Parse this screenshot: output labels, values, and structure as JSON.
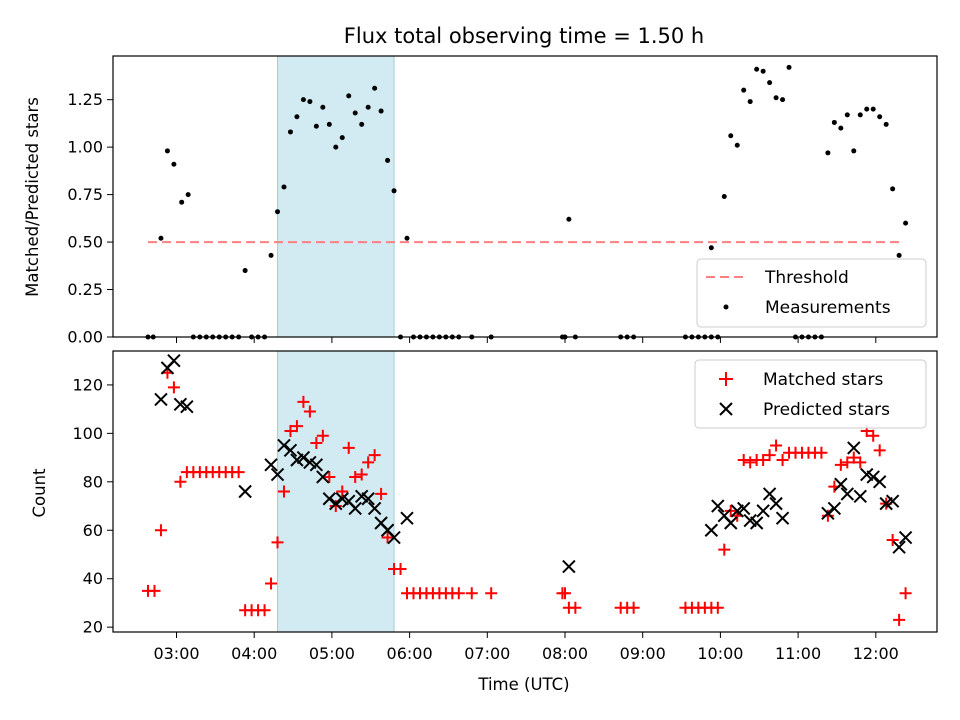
{
  "chart_data": [
    {
      "type": "scatter",
      "title": "Flux total observing time = 1.50 h",
      "ylabel": "Matched/Predicted stars",
      "xlabel": "",
      "ylim": [
        0,
        1.48
      ],
      "yticks": [
        "0.00",
        "0.25",
        "0.50",
        "0.75",
        "1.00",
        "1.25"
      ],
      "shaded_span": [
        "04:18",
        "05:48"
      ],
      "threshold": {
        "name": "Threshold",
        "value": 0.5,
        "x_range": [
          "02:38",
          "12:18"
        ],
        "color": "#ff8080"
      },
      "series": [
        {
          "name": "Measurements",
          "color": "#000000",
          "points": [
            [
              "02:38",
              0
            ],
            [
              "02:42",
              0
            ],
            [
              "02:48",
              0.52
            ],
            [
              "02:53",
              0.98
            ],
            [
              "02:58",
              0.91
            ],
            [
              "03:04",
              0.71
            ],
            [
              "03:09",
              0.75
            ],
            [
              "03:13",
              0
            ],
            [
              "03:18",
              0
            ],
            [
              "03:23",
              0
            ],
            [
              "03:28",
              0
            ],
            [
              "03:33",
              0
            ],
            [
              "03:38",
              0
            ],
            [
              "03:43",
              0
            ],
            [
              "03:48",
              0
            ],
            [
              "03:53",
              0.35
            ],
            [
              "03:58",
              0
            ],
            [
              "04:03",
              0
            ],
            [
              "04:08",
              0
            ],
            [
              "04:13",
              0.43
            ],
            [
              "04:18",
              0.66
            ],
            [
              "04:23",
              0.79
            ],
            [
              "04:28",
              1.08
            ],
            [
              "04:33",
              1.16
            ],
            [
              "04:38",
              1.25
            ],
            [
              "04:43",
              1.24
            ],
            [
              "04:48",
              1.11
            ],
            [
              "04:53",
              1.21
            ],
            [
              "04:58",
              1.12
            ],
            [
              "05:03",
              1.0
            ],
            [
              "05:08",
              1.05
            ],
            [
              "05:13",
              1.27
            ],
            [
              "05:18",
              1.18
            ],
            [
              "05:23",
              1.12
            ],
            [
              "05:28",
              1.21
            ],
            [
              "05:33",
              1.31
            ],
            [
              "05:38",
              1.19
            ],
            [
              "05:43",
              0.93
            ],
            [
              "05:48",
              0.77
            ],
            [
              "05:53",
              0
            ],
            [
              "05:58",
              0.52
            ],
            [
              "06:03",
              0
            ],
            [
              "06:08",
              0
            ],
            [
              "06:13",
              0
            ],
            [
              "06:18",
              0
            ],
            [
              "06:23",
              0
            ],
            [
              "06:28",
              0
            ],
            [
              "06:33",
              0
            ],
            [
              "06:38",
              0
            ],
            [
              "06:48",
              0
            ],
            [
              "07:03",
              0
            ],
            [
              "07:58",
              0
            ],
            [
              "08:00",
              0
            ],
            [
              "08:03",
              0.62
            ],
            [
              "08:08",
              0
            ],
            [
              "08:43",
              0
            ],
            [
              "08:48",
              0
            ],
            [
              "08:53",
              0
            ],
            [
              "09:33",
              0
            ],
            [
              "09:38",
              0
            ],
            [
              "09:43",
              0
            ],
            [
              "09:48",
              0
            ],
            [
              "09:53",
              0
            ],
            [
              "09:58",
              0
            ],
            [
              "09:53",
              0.47
            ],
            [
              "10:03",
              0.74
            ],
            [
              "10:08",
              1.06
            ],
            [
              "10:13",
              1.01
            ],
            [
              "10:18",
              1.3
            ],
            [
              "10:23",
              1.24
            ],
            [
              "10:28",
              1.41
            ],
            [
              "10:33",
              1.4
            ],
            [
              "10:38",
              1.34
            ],
            [
              "10:43",
              1.26
            ],
            [
              "10:48",
              1.25
            ],
            [
              "10:53",
              1.42
            ],
            [
              "10:58",
              0
            ],
            [
              "11:03",
              0
            ],
            [
              "11:08",
              0
            ],
            [
              "11:13",
              0
            ],
            [
              "11:18",
              0
            ],
            [
              "11:23",
              0.97
            ],
            [
              "11:28",
              1.13
            ],
            [
              "11:33",
              1.1
            ],
            [
              "11:38",
              1.17
            ],
            [
              "11:43",
              0.98
            ],
            [
              "11:48",
              1.17
            ],
            [
              "11:53",
              1.2
            ],
            [
              "11:58",
              1.2
            ],
            [
              "12:03",
              1.16
            ],
            [
              "12:08",
              1.12
            ],
            [
              "12:13",
              0.78
            ],
            [
              "12:18",
              0.43
            ],
            [
              "12:23",
              0.6
            ]
          ]
        }
      ],
      "legend": {
        "placement": "lower-right",
        "entries": [
          "Threshold",
          "Measurements"
        ]
      }
    },
    {
      "type": "scatter",
      "title": "",
      "ylabel": "Count",
      "xlabel": "Time (UTC)",
      "ylim": [
        18,
        134
      ],
      "yticks": [
        "20",
        "40",
        "60",
        "80",
        "100",
        "120"
      ],
      "xticks": [
        "03:00",
        "04:00",
        "05:00",
        "06:00",
        "07:00",
        "08:00",
        "09:00",
        "10:00",
        "11:00",
        "12:00"
      ],
      "shaded_span": [
        "04:18",
        "05:48"
      ],
      "series": [
        {
          "name": "Matched stars",
          "marker": "plus",
          "color": "#ff0000",
          "points": [
            [
              "02:38",
              35
            ],
            [
              "02:43",
              35
            ],
            [
              "02:48",
              60
            ],
            [
              "02:53",
              125
            ],
            [
              "02:58",
              119
            ],
            [
              "03:03",
              80
            ],
            [
              "03:08",
              84
            ],
            [
              "03:13",
              84
            ],
            [
              "03:18",
              84
            ],
            [
              "03:23",
              84
            ],
            [
              "03:28",
              84
            ],
            [
              "03:33",
              84
            ],
            [
              "03:38",
              84
            ],
            [
              "03:43",
              84
            ],
            [
              "03:48",
              84
            ],
            [
              "03:53",
              27
            ],
            [
              "03:58",
              27
            ],
            [
              "04:03",
              27
            ],
            [
              "04:08",
              27
            ],
            [
              "04:13",
              38
            ],
            [
              "04:18",
              55
            ],
            [
              "04:23",
              76
            ],
            [
              "04:28",
              101
            ],
            [
              "04:33",
              103
            ],
            [
              "04:38",
              113
            ],
            [
              "04:43",
              109
            ],
            [
              "04:48",
              96
            ],
            [
              "04:53",
              99
            ],
            [
              "04:58",
              82
            ],
            [
              "05:03",
              70
            ],
            [
              "05:08",
              76
            ],
            [
              "05:13",
              94
            ],
            [
              "05:18",
              82
            ],
            [
              "05:23",
              83
            ],
            [
              "05:28",
              88
            ],
            [
              "05:33",
              91
            ],
            [
              "05:38",
              75
            ],
            [
              "05:43",
              57
            ],
            [
              "05:48",
              44
            ],
            [
              "05:53",
              44
            ],
            [
              "05:58",
              34
            ],
            [
              "06:03",
              34
            ],
            [
              "06:08",
              34
            ],
            [
              "06:13",
              34
            ],
            [
              "06:18",
              34
            ],
            [
              "06:23",
              34
            ],
            [
              "06:28",
              34
            ],
            [
              "06:33",
              34
            ],
            [
              "06:38",
              34
            ],
            [
              "06:48",
              34
            ],
            [
              "07:03",
              34
            ],
            [
              "07:58",
              34
            ],
            [
              "08:00",
              34
            ],
            [
              "08:03",
              28
            ],
            [
              "08:08",
              28
            ],
            [
              "08:43",
              28
            ],
            [
              "08:48",
              28
            ],
            [
              "08:53",
              28
            ],
            [
              "09:33",
              28
            ],
            [
              "09:38",
              28
            ],
            [
              "09:43",
              28
            ],
            [
              "09:48",
              28
            ],
            [
              "09:53",
              28
            ],
            [
              "09:58",
              28
            ],
            [
              "10:03",
              52
            ],
            [
              "10:08",
              68
            ],
            [
              "10:13",
              66
            ],
            [
              "10:18",
              89
            ],
            [
              "10:23",
              88
            ],
            [
              "10:28",
              89
            ],
            [
              "10:33",
              89
            ],
            [
              "10:38",
              91
            ],
            [
              "10:43",
              95
            ],
            [
              "10:48",
              89
            ],
            [
              "10:53",
              92
            ],
            [
              "10:58",
              92
            ],
            [
              "11:03",
              92
            ],
            [
              "11:08",
              92
            ],
            [
              "11:13",
              92
            ],
            [
              "11:18",
              92
            ],
            [
              "11:23",
              66
            ],
            [
              "11:28",
              78
            ],
            [
              "11:33",
              87
            ],
            [
              "11:38",
              88
            ],
            [
              "11:43",
              90
            ],
            [
              "11:48",
              88
            ],
            [
              "11:53",
              101
            ],
            [
              "11:58",
              99
            ],
            [
              "12:03",
              93
            ],
            [
              "12:08",
              71
            ],
            [
              "12:13",
              56
            ],
            [
              "12:18",
              23
            ],
            [
              "12:23",
              34
            ]
          ]
        },
        {
          "name": "Predicted stars",
          "marker": "x",
          "color": "#000000",
          "points": [
            [
              "02:48",
              114
            ],
            [
              "02:53",
              127
            ],
            [
              "02:58",
              130
            ],
            [
              "03:03",
              112
            ],
            [
              "03:08",
              111
            ],
            [
              "03:53",
              76
            ],
            [
              "04:13",
              87
            ],
            [
              "04:18",
              83
            ],
            [
              "04:23",
              95
            ],
            [
              "04:28",
              93
            ],
            [
              "04:33",
              89
            ],
            [
              "04:38",
              90
            ],
            [
              "04:43",
              88
            ],
            [
              "04:48",
              87
            ],
            [
              "04:53",
              82
            ],
            [
              "04:58",
              73
            ],
            [
              "05:03",
              71
            ],
            [
              "05:08",
              73
            ],
            [
              "05:13",
              72
            ],
            [
              "05:18",
              69
            ],
            [
              "05:23",
              74
            ],
            [
              "05:28",
              73
            ],
            [
              "05:33",
              69
            ],
            [
              "05:38",
              63
            ],
            [
              "05:43",
              60
            ],
            [
              "05:48",
              57
            ],
            [
              "05:58",
              65
            ],
            [
              "08:03",
              45
            ],
            [
              "09:53",
              60
            ],
            [
              "09:58",
              70
            ],
            [
              "10:03",
              66
            ],
            [
              "10:08",
              63
            ],
            [
              "10:13",
              68
            ],
            [
              "10:18",
              69
            ],
            [
              "10:23",
              64
            ],
            [
              "10:28",
              63
            ],
            [
              "10:33",
              68
            ],
            [
              "10:38",
              75
            ],
            [
              "10:43",
              71
            ],
            [
              "10:48",
              65
            ],
            [
              "11:23",
              67
            ],
            [
              "11:28",
              69
            ],
            [
              "11:33",
              79
            ],
            [
              "11:38",
              75
            ],
            [
              "11:43",
              94
            ],
            [
              "11:48",
              74
            ],
            [
              "11:53",
              83
            ],
            [
              "11:58",
              82
            ],
            [
              "12:03",
              80
            ],
            [
              "12:08",
              71
            ],
            [
              "12:13",
              72
            ],
            [
              "12:18",
              53
            ],
            [
              "12:23",
              57
            ]
          ]
        }
      ],
      "legend": {
        "placement": "top-right",
        "entries": [
          "Matched stars",
          "Predicted stars"
        ]
      }
    }
  ]
}
